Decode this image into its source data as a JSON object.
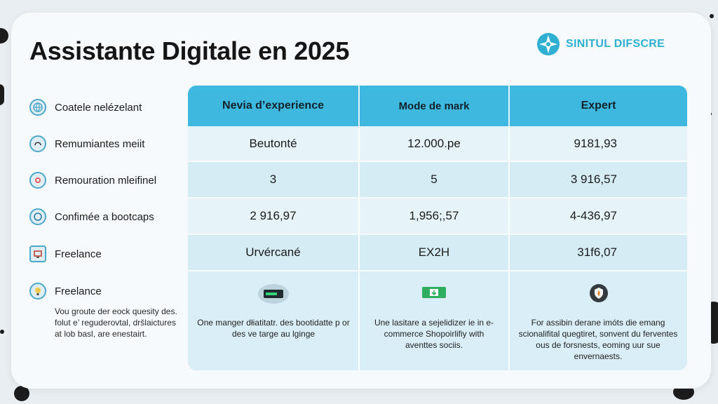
{
  "title": "Assistante Digitale en 2025",
  "brand": {
    "name": "SINITUL DIFSCRE",
    "logo_icon": "compass-star-icon",
    "color": "#2fb0d3"
  },
  "columns": [
    "Nevia d’experience",
    "Mode de mark",
    "Expert"
  ],
  "rows": [
    {
      "label": "Coatele nelézelant",
      "icon": "globe-icon",
      "cells": []
    },
    {
      "label": "Remumiantes meiit",
      "icon": "coin-icon",
      "cells": [
        "Beutonté",
        "12.000.pe",
        "9181,93"
      ]
    },
    {
      "label": "Remouration mleifinel",
      "icon": "badge-icon",
      "cells": [
        "3",
        "5",
        "3 916,57"
      ]
    },
    {
      "label": "Confimée a bootcaps",
      "icon": "chat-icon",
      "cells": [
        "2 916,97",
        "1,956;,57",
        "4-436,97"
      ]
    },
    {
      "label": "Freelance",
      "icon": "monitor-icon",
      "cells": [
        "Urvércané",
        "EX2H",
        "31f6,07"
      ]
    },
    {
      "label": "Freelance",
      "icon": "lightbulb-icon",
      "cells": []
    }
  ],
  "left_description": "Vou groute der eock quesity des. folut e’ reguderovtal, dršlaictures at lob basl, are enestairt.",
  "column_icons": [
    "terminal-icon",
    "cash-icon",
    "shield-icon"
  ],
  "column_descriptions": [
    "One manger dłiatitatr. des bootidatte p or des ve targe au lginge",
    "Une lasitare a sejelidizer ie in e-commerce Shopoirlifiy with aventtes sociis.",
    "For assibin derane imóts die emang scionalifital quegtiret, sonvent du ferventes ous de forsnests, eoming uur sue envernaests."
  ],
  "colors": {
    "header": "#3fb8df",
    "table_bg": "#e2f1f7",
    "accent": "#4da7c9"
  }
}
